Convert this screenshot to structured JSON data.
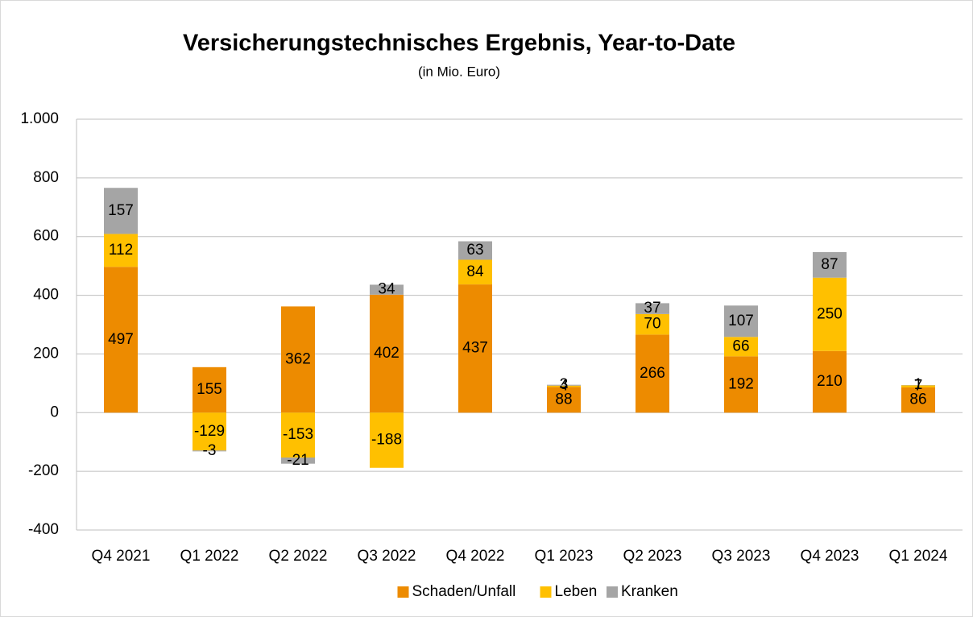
{
  "chart_data": {
    "type": "stacked_bar",
    "title": "Versicherungstechnisches Ergebnis, Year-to-Date",
    "subtitle": "(in Mio. Euro)",
    "categories": [
      "Q4 2021",
      "Q1 2022",
      "Q2 2022",
      "Q3 2022",
      "Q4 2022",
      "Q1 2023",
      "Q2 2023",
      "Q3 2023",
      "Q4 2023",
      "Q1 2024"
    ],
    "series": [
      {
        "name": "Schaden/Unfall",
        "color": "#ed8b00",
        "values": [
          497,
          155,
          362,
          402,
          437,
          88,
          266,
          192,
          210,
          86
        ]
      },
      {
        "name": "Leben",
        "color": "#ffc000",
        "values": [
          112,
          -129,
          -153,
          -188,
          84,
          4,
          70,
          66,
          250,
          7
        ]
      },
      {
        "name": "Kranken",
        "color": "#a5a5a5",
        "values": [
          157,
          -3,
          -21,
          34,
          63,
          3,
          37,
          107,
          87,
          1
        ]
      }
    ],
    "ylim": [
      -400,
      1000
    ],
    "yticks": [
      -400,
      -200,
      0,
      200,
      400,
      600,
      800,
      {
        "value": 1000,
        "label": "1.000"
      }
    ],
    "grid": true,
    "legend": "bottom"
  }
}
